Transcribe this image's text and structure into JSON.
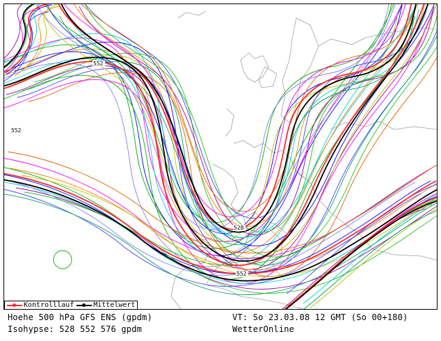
{
  "map": {
    "contour_labels": [
      "552",
      "552",
      "528",
      "552"
    ],
    "colors": {
      "control": "#ff2a2a",
      "mean": "#000000",
      "coast": "#a0a0a0",
      "members": [
        "#00b000",
        "#0000ff",
        "#ff00ff",
        "#00d0d0",
        "#ff8000",
        "#a000a0",
        "#c0c000",
        "#4040ff",
        "#00a060",
        "#e06000",
        "#8080ff",
        "#20c020"
      ]
    }
  },
  "legend": {
    "control_label": "Kontrolllauf",
    "mean_label": "Mittelwert"
  },
  "footer": {
    "line1_left": "Hoehe 500 hPa GFS ENS (gpdm)",
    "line2_left": "Isohypse: 528 552 576 gpdm",
    "line1_right": "VT: So 23.03.08 12 GMT (So 00+180)",
    "line2_right": "WetterOnline"
  }
}
